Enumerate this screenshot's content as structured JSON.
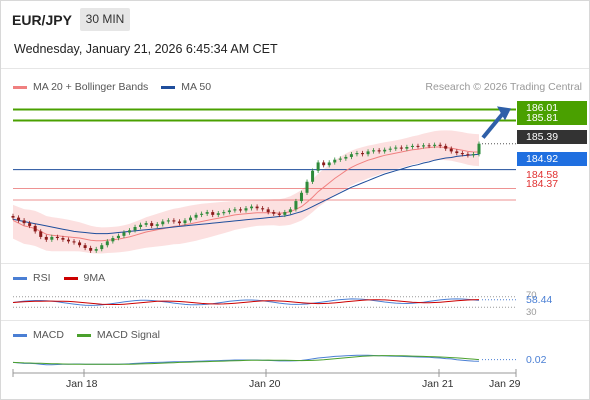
{
  "header": {
    "symbol": "EUR/JPY",
    "timeframe": "30 MIN",
    "datetime": "Wednesday, January 21, 2026 6:45:34 AM CET",
    "copyright": "Research © 2026 Trading Central"
  },
  "legends": {
    "main": [
      {
        "label": "MA 20 + Bollinger Bands",
        "color": "#f08080"
      },
      {
        "label": "MA 50",
        "color": "#1f4e9c"
      }
    ],
    "rsi": [
      {
        "label": "RSI",
        "color": "#4a7fd4"
      },
      {
        "label": "9MA",
        "color": "#cc0000"
      }
    ],
    "macd": [
      {
        "label": "MACD",
        "color": "#4a7fd4"
      },
      {
        "label": "MACD Signal",
        "color": "#4aa02c"
      }
    ]
  },
  "price_tags": {
    "resistance_1": "186.01",
    "resistance_2": "185.81",
    "last_price": "185.39",
    "pivot": "184.92",
    "support_1": "184.58",
    "support_2": "184.37"
  },
  "rsi_tags": {
    "upper": "70",
    "value": "58.44",
    "lower": "30"
  },
  "macd_tag": "0.02",
  "x_axis": [
    "Jan 18",
    "Jan 20",
    "Jan 21",
    "Jan 29"
  ],
  "colors": {
    "resistance": "#4aa000",
    "pivot": "#1f4e9c",
    "support": "#e03030",
    "last_price": "#333333",
    "arrow": "#2e5fa8",
    "bollinger_fill": "#fbd5d5",
    "candle_up": "#2e8b3a",
    "candle_down": "#8b1a1a"
  },
  "chart_data": {
    "type": "candlestick",
    "price_range": [
      183.3,
      186.2
    ],
    "levels": {
      "resistance": [
        186.01,
        185.81
      ],
      "pivot": 184.92,
      "support": [
        184.58,
        184.37
      ]
    },
    "close_series": [
      184.05,
      184.0,
      183.95,
      183.9,
      183.8,
      183.7,
      183.65,
      183.7,
      183.68,
      183.65,
      183.62,
      183.6,
      183.55,
      183.5,
      183.45,
      183.48,
      183.55,
      183.62,
      183.68,
      183.72,
      183.78,
      183.82,
      183.88,
      183.92,
      183.95,
      183.9,
      183.93,
      183.98,
      184.0,
      183.98,
      183.95,
      184.0,
      184.05,
      184.1,
      184.12,
      184.15,
      184.1,
      184.13,
      184.15,
      184.18,
      184.2,
      184.18,
      184.22,
      184.25,
      184.22,
      184.2,
      184.15,
      184.12,
      184.1,
      184.15,
      184.2,
      184.35,
      184.5,
      184.7,
      184.9,
      185.05,
      185.0,
      185.05,
      185.1,
      185.12,
      185.15,
      185.2,
      185.22,
      185.2,
      185.25,
      185.27,
      185.25,
      185.28,
      185.3,
      185.32,
      185.3,
      185.33,
      185.35,
      185.34,
      185.36,
      185.35,
      185.37,
      185.35,
      185.3,
      185.25,
      185.22,
      185.2,
      185.18,
      185.2,
      185.39
    ],
    "ma20": [
      184.0,
      183.95,
      183.9,
      183.88,
      183.85,
      183.8,
      183.75,
      183.73,
      183.72,
      183.71,
      183.7,
      183.69,
      183.68,
      183.66,
      183.64,
      183.63,
      183.63,
      183.64,
      183.65,
      183.66,
      183.68,
      183.7,
      183.73,
      183.76,
      183.79,
      183.81,
      183.83,
      183.85,
      183.87,
      183.89,
      183.9,
      183.92,
      183.94,
      183.96,
      183.98,
      184.0,
      184.02,
      184.04,
      184.06,
      184.08,
      184.1,
      184.11,
      184.12,
      184.13,
      184.14,
      184.14,
      184.14,
      184.14,
      184.13,
      184.14,
      184.16,
      184.2,
      184.25,
      184.33,
      184.42,
      184.52,
      184.6,
      184.68,
      184.76,
      184.83,
      184.9,
      184.96,
      185.01,
      185.05,
      185.09,
      185.12,
      185.15,
      185.18,
      185.2,
      185.22,
      185.24,
      185.26,
      185.28,
      185.29,
      185.31,
      185.32,
      185.33,
      185.33,
      185.32,
      185.31,
      185.29,
      185.27,
      185.25,
      185.24,
      185.24
    ],
    "ma50": [
      184.02,
      184.0,
      183.98,
      183.96,
      183.94,
      183.92,
      183.9,
      183.88,
      183.86,
      183.84,
      183.82,
      183.8,
      183.79,
      183.78,
      183.77,
      183.76,
      183.76,
      183.76,
      183.77,
      183.78,
      183.79,
      183.8,
      183.81,
      183.82,
      183.83,
      183.84,
      183.85,
      183.86,
      183.87,
      183.88,
      183.89,
      183.9,
      183.91,
      183.92,
      183.93,
      183.94,
      183.95,
      183.96,
      183.97,
      183.98,
      183.99,
      184.0,
      184.01,
      184.02,
      184.03,
      184.04,
      184.05,
      184.06,
      184.07,
      184.08,
      184.1,
      184.13,
      184.16,
      184.2,
      184.25,
      184.3,
      184.35,
      184.4,
      184.45,
      184.5,
      184.55,
      184.6,
      184.64,
      184.68,
      184.72,
      184.76,
      184.8,
      184.84,
      184.87,
      184.9,
      184.93,
      184.96,
      184.99,
      185.01,
      185.04,
      185.06,
      185.09,
      185.11,
      185.13,
      185.14,
      185.16,
      185.17,
      185.18,
      185.19,
      185.2
    ],
    "rsi_value": 58.44,
    "rsi_levels": [
      70,
      30
    ],
    "macd_value": 0.02,
    "x_ticks": [
      "Jan 18",
      "Jan 20",
      "Jan 21",
      "Jan 29"
    ]
  }
}
